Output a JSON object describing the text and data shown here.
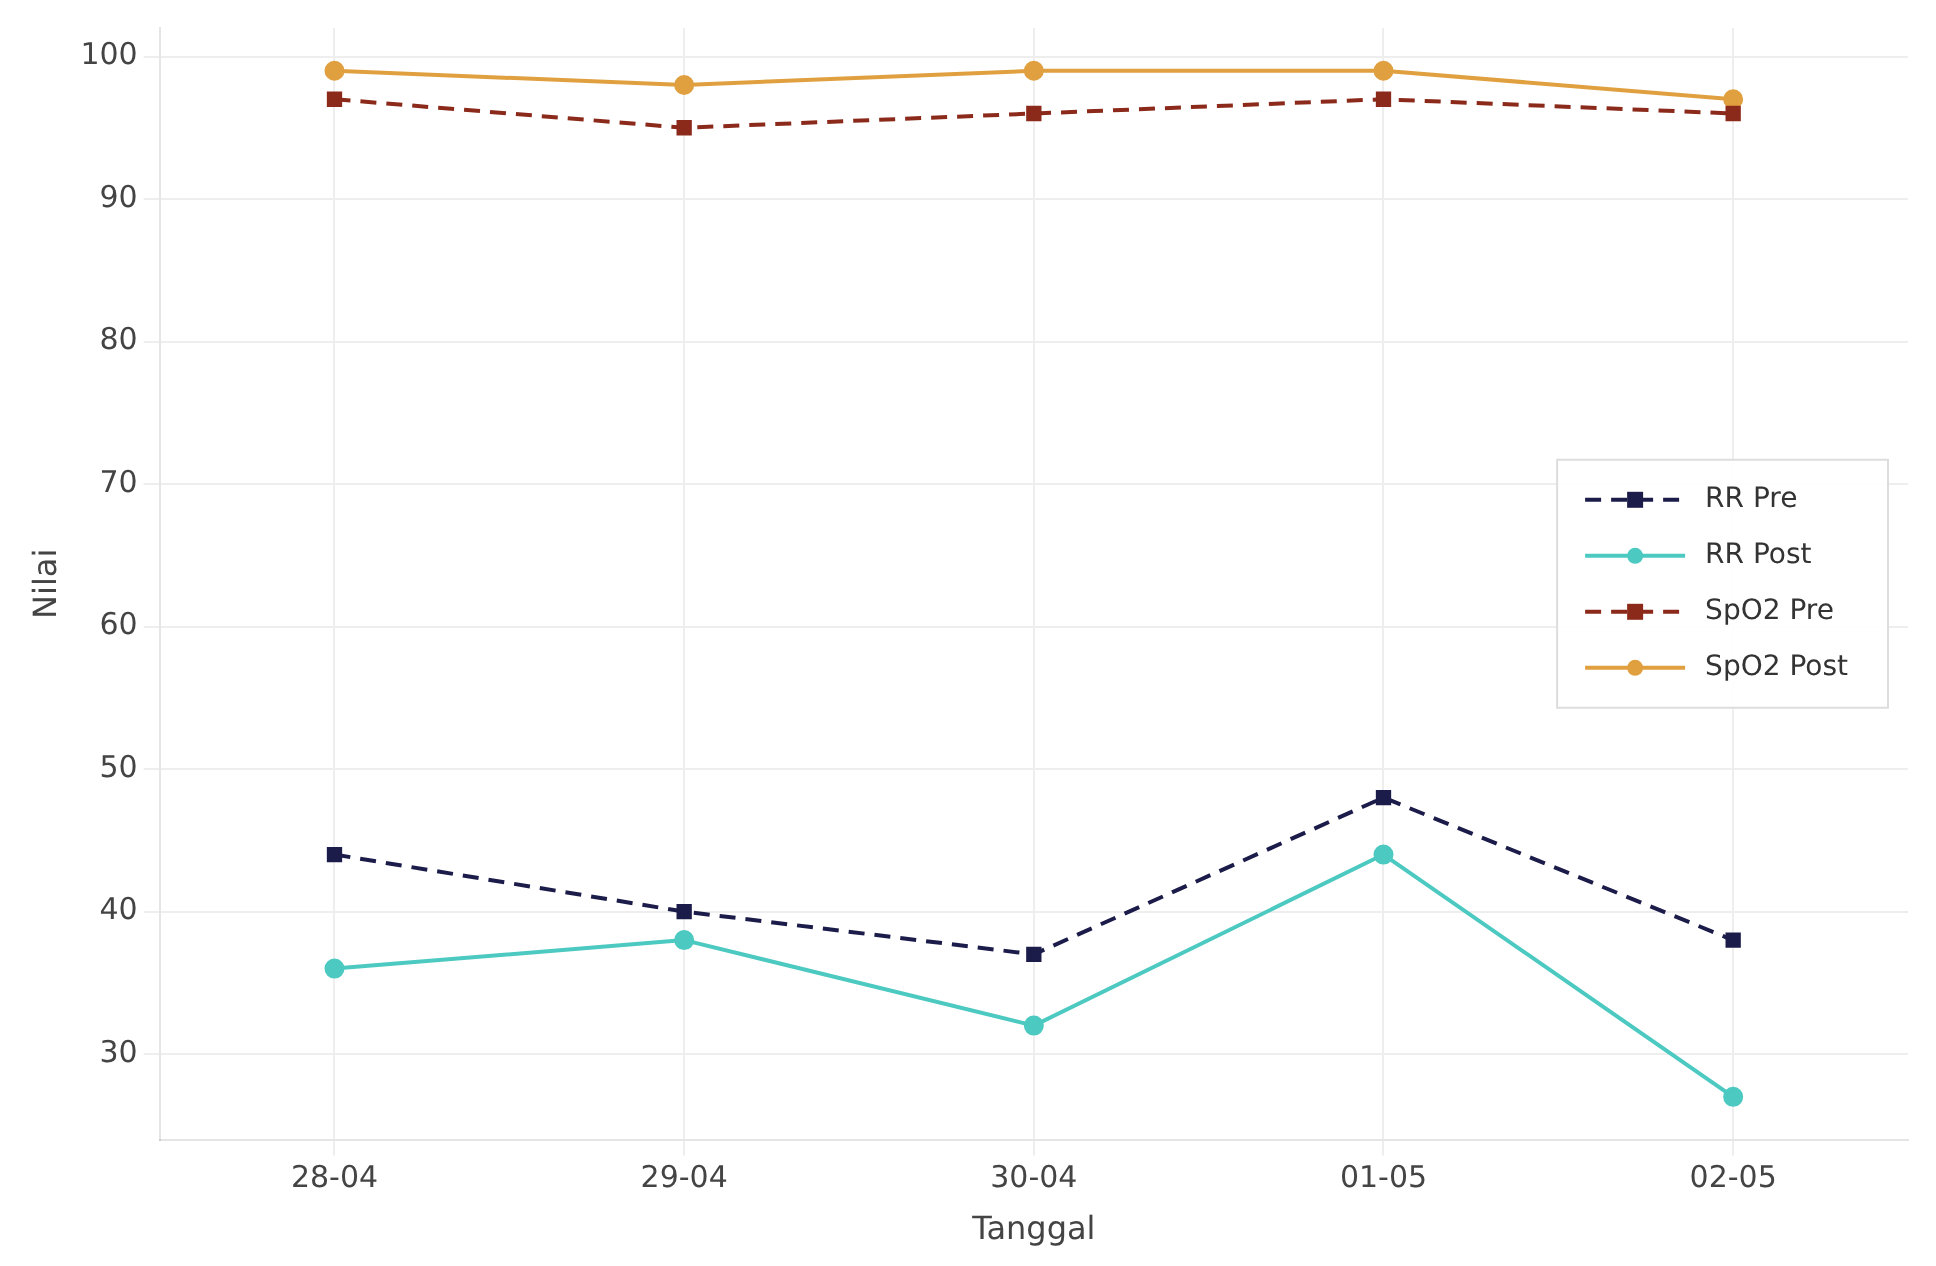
{
  "chart_data": {
    "type": "line",
    "xlabel": "Tanggal",
    "ylabel": "Nilai",
    "categories": [
      "28-04",
      "29-04",
      "30-04",
      "01-05",
      "02-05"
    ],
    "series": [
      {
        "name": "RR Pre",
        "color": "#1c1c4a",
        "values": [
          44,
          40,
          37,
          48,
          38
        ],
        "line_style": "dashed",
        "marker": "square"
      },
      {
        "name": "RR Post",
        "color": "#4cc9c0",
        "values": [
          36,
          38,
          32,
          44,
          27
        ],
        "line_style": "solid",
        "marker": "circle"
      },
      {
        "name": "SpO2 Pre",
        "color": "#8b2a1a",
        "values": [
          97,
          95,
          96,
          97,
          96
        ],
        "line_style": "dashed",
        "marker": "square"
      },
      {
        "name": "SpO2 Post",
        "color": "#e0a040",
        "values": [
          99,
          98,
          99,
          99,
          97
        ],
        "line_style": "solid",
        "marker": "circle"
      }
    ],
    "ylim": [
      24,
      102
    ],
    "yticks": [
      30,
      40,
      50,
      60,
      70,
      80,
      90,
      100
    ],
    "grid": true,
    "legend": "right"
  }
}
